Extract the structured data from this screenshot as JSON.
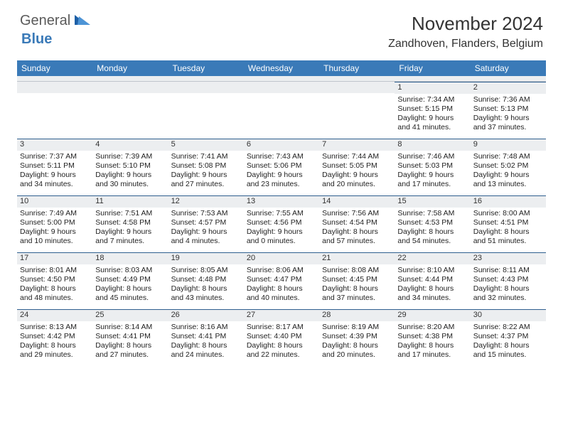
{
  "logo": {
    "part1": "General",
    "part2": "Blue"
  },
  "title": "November 2024",
  "location": "Zandhoven, Flanders, Belgium",
  "colors": {
    "header_bg": "#3a7ab8",
    "header_text": "#ffffff",
    "daynum_bg": "#eceef0",
    "daynum_border": "#2f5f8f",
    "body_text": "#222222",
    "logo_gray": "#5a5a5a",
    "logo_blue": "#3a7ab8"
  },
  "weekdays": [
    "Sunday",
    "Monday",
    "Tuesday",
    "Wednesday",
    "Thursday",
    "Friday",
    "Saturday"
  ],
  "weeks": [
    [
      null,
      null,
      null,
      null,
      null,
      {
        "n": "1",
        "sr": "7:34 AM",
        "ss": "5:15 PM",
        "dh": "9",
        "dm": "41"
      },
      {
        "n": "2",
        "sr": "7:36 AM",
        "ss": "5:13 PM",
        "dh": "9",
        "dm": "37"
      }
    ],
    [
      {
        "n": "3",
        "sr": "7:37 AM",
        "ss": "5:11 PM",
        "dh": "9",
        "dm": "34"
      },
      {
        "n": "4",
        "sr": "7:39 AM",
        "ss": "5:10 PM",
        "dh": "9",
        "dm": "30"
      },
      {
        "n": "5",
        "sr": "7:41 AM",
        "ss": "5:08 PM",
        "dh": "9",
        "dm": "27"
      },
      {
        "n": "6",
        "sr": "7:43 AM",
        "ss": "5:06 PM",
        "dh": "9",
        "dm": "23"
      },
      {
        "n": "7",
        "sr": "7:44 AM",
        "ss": "5:05 PM",
        "dh": "9",
        "dm": "20"
      },
      {
        "n": "8",
        "sr": "7:46 AM",
        "ss": "5:03 PM",
        "dh": "9",
        "dm": "17"
      },
      {
        "n": "9",
        "sr": "7:48 AM",
        "ss": "5:02 PM",
        "dh": "9",
        "dm": "13"
      }
    ],
    [
      {
        "n": "10",
        "sr": "7:49 AM",
        "ss": "5:00 PM",
        "dh": "9",
        "dm": "10"
      },
      {
        "n": "11",
        "sr": "7:51 AM",
        "ss": "4:58 PM",
        "dh": "9",
        "dm": "7"
      },
      {
        "n": "12",
        "sr": "7:53 AM",
        "ss": "4:57 PM",
        "dh": "9",
        "dm": "4"
      },
      {
        "n": "13",
        "sr": "7:55 AM",
        "ss": "4:56 PM",
        "dh": "9",
        "dm": "0"
      },
      {
        "n": "14",
        "sr": "7:56 AM",
        "ss": "4:54 PM",
        "dh": "8",
        "dm": "57"
      },
      {
        "n": "15",
        "sr": "7:58 AM",
        "ss": "4:53 PM",
        "dh": "8",
        "dm": "54"
      },
      {
        "n": "16",
        "sr": "8:00 AM",
        "ss": "4:51 PM",
        "dh": "8",
        "dm": "51"
      }
    ],
    [
      {
        "n": "17",
        "sr": "8:01 AM",
        "ss": "4:50 PM",
        "dh": "8",
        "dm": "48"
      },
      {
        "n": "18",
        "sr": "8:03 AM",
        "ss": "4:49 PM",
        "dh": "8",
        "dm": "45"
      },
      {
        "n": "19",
        "sr": "8:05 AM",
        "ss": "4:48 PM",
        "dh": "8",
        "dm": "43"
      },
      {
        "n": "20",
        "sr": "8:06 AM",
        "ss": "4:47 PM",
        "dh": "8",
        "dm": "40"
      },
      {
        "n": "21",
        "sr": "8:08 AM",
        "ss": "4:45 PM",
        "dh": "8",
        "dm": "37"
      },
      {
        "n": "22",
        "sr": "8:10 AM",
        "ss": "4:44 PM",
        "dh": "8",
        "dm": "34"
      },
      {
        "n": "23",
        "sr": "8:11 AM",
        "ss": "4:43 PM",
        "dh": "8",
        "dm": "32"
      }
    ],
    [
      {
        "n": "24",
        "sr": "8:13 AM",
        "ss": "4:42 PM",
        "dh": "8",
        "dm": "29"
      },
      {
        "n": "25",
        "sr": "8:14 AM",
        "ss": "4:41 PM",
        "dh": "8",
        "dm": "27"
      },
      {
        "n": "26",
        "sr": "8:16 AM",
        "ss": "4:41 PM",
        "dh": "8",
        "dm": "24"
      },
      {
        "n": "27",
        "sr": "8:17 AM",
        "ss": "4:40 PM",
        "dh": "8",
        "dm": "22"
      },
      {
        "n": "28",
        "sr": "8:19 AM",
        "ss": "4:39 PM",
        "dh": "8",
        "dm": "20"
      },
      {
        "n": "29",
        "sr": "8:20 AM",
        "ss": "4:38 PM",
        "dh": "8",
        "dm": "17"
      },
      {
        "n": "30",
        "sr": "8:22 AM",
        "ss": "4:37 PM",
        "dh": "8",
        "dm": "15"
      }
    ]
  ]
}
